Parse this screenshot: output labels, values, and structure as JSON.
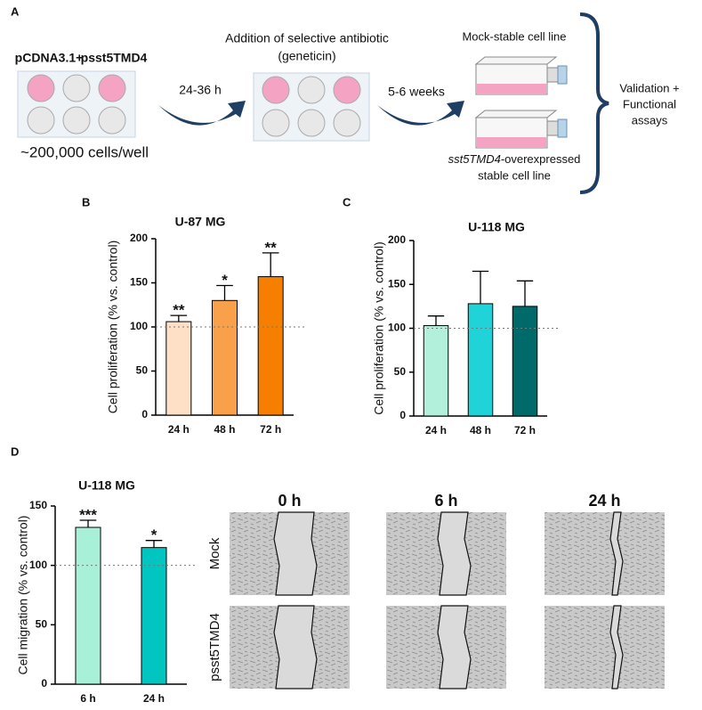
{
  "panel_labels": [
    "A",
    "B",
    "C",
    "D"
  ],
  "panel_a": {
    "plate_labels": [
      "pCDNA3.1+",
      "psst5TMD4"
    ],
    "cell_density": "~200,000 cells/well",
    "step1_time": "24-36 h",
    "antibiotic": [
      "Addition of selective antibiotic",
      "(geneticin)"
    ],
    "step2_time": "5-6 weeks",
    "mock_line": "Mock-stable cell line",
    "overexpressed_line": {
      "gene": "sst5TMD4",
      "suffix": "-overexpressed",
      "second_line": "stable cell line"
    },
    "assays": [
      "Validation +",
      "Functional",
      "assays"
    ]
  },
  "chart_data": [
    {
      "type": "bar",
      "title": "U-87 MG",
      "ylabel": "Cell proliferation (% vs. control)",
      "categories": [
        "24 h",
        "48 h",
        "72 h"
      ],
      "values": [
        106,
        130,
        157
      ],
      "errors": [
        7,
        17,
        27
      ],
      "colors": [
        "#fde0c5",
        "#f9a04a",
        "#f77f00"
      ],
      "annotations": [
        "**",
        "*",
        "**"
      ],
      "ylim": [
        0,
        200
      ],
      "yticks": [
        0,
        50,
        100,
        150,
        200
      ],
      "reference_line": 100
    },
    {
      "type": "bar",
      "title": "U-118 MG",
      "ylabel": "Cell proliferation (% vs. control)",
      "categories": [
        "24 h",
        "48 h",
        "72 h"
      ],
      "values": [
        103,
        128,
        125
      ],
      "errors": [
        11,
        37,
        29
      ],
      "colors": [
        "#b2f0dc",
        "#1fd3d8",
        "#006a6a"
      ],
      "ylim": [
        0,
        200
      ],
      "yticks": [
        0,
        50,
        100,
        150,
        200
      ],
      "reference_line": 100
    },
    {
      "type": "bar",
      "title": "U-118 MG",
      "ylabel": "Cell migration (% vs. control)",
      "categories": [
        "6 h",
        "24 h"
      ],
      "values": [
        132,
        115
      ],
      "errors": [
        6,
        6
      ],
      "colors": [
        "#a8f0d8",
        "#00c5c0"
      ],
      "annotations": [
        "***",
        "*"
      ],
      "ylim": [
        0,
        150
      ],
      "yticks": [
        0,
        50,
        100,
        150
      ],
      "reference_line": 100
    }
  ],
  "wound_images": {
    "columns": [
      "0 h",
      "6 h",
      "24 h"
    ],
    "rows": [
      "Mock",
      "psst5TMD4"
    ]
  }
}
